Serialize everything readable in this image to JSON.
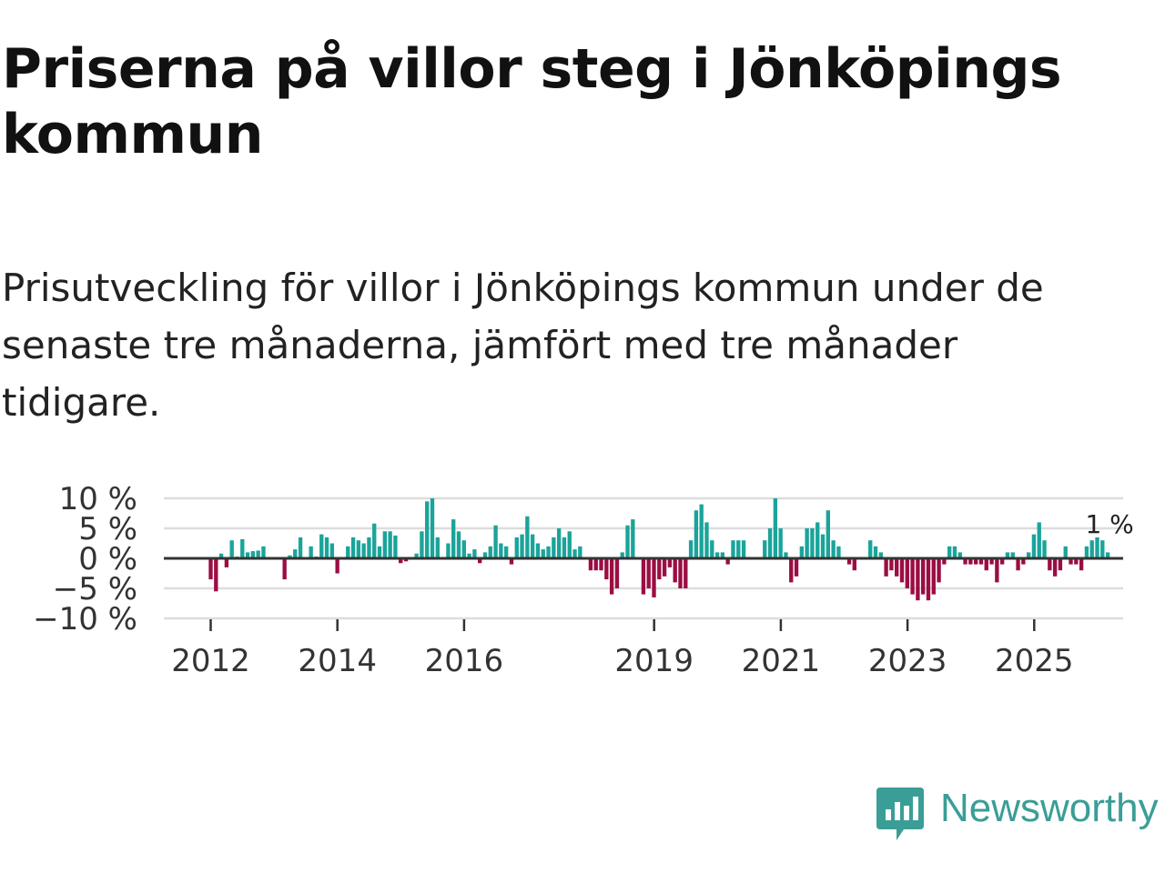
{
  "title": "Priserna på villor steg i Jönköpings kommun",
  "subtitle": "Prisutveckling för villor i Jönköpings kommun under de senaste tre månaderna, jämfört med tre månader tidigare.",
  "brand": {
    "name": "Newsworthy",
    "icon": "newsworthy-logo-icon",
    "color": "#3a9e97"
  },
  "colors": {
    "positive": "#1aa49a",
    "negative": "#9b0d43",
    "grid": "#dddddd",
    "zero": "#333333"
  },
  "chart_data": {
    "type": "bar",
    "title": "Priserna på villor steg i Jönköpings kommun",
    "xlabel": "",
    "ylabel": "",
    "ylim": [
      -10,
      10
    ],
    "yticks": [
      10,
      5,
      0,
      -5,
      -10
    ],
    "ytick_labels": [
      "10 %",
      "5 %",
      "0 %",
      "−5 %",
      "−10 %"
    ],
    "xticks": [
      2012,
      2014,
      2016,
      2019,
      2021,
      2023,
      2025
    ],
    "xtick_labels": [
      "2012",
      "2014",
      "2016",
      "2019",
      "2021",
      "2023",
      "2025"
    ],
    "x_start": 2012.0,
    "x_step_years": 0.0833,
    "unit": "%",
    "last_value_label": "1 %",
    "values": [
      -3.5,
      -5.5,
      0.8,
      -1.5,
      3.0,
      0.3,
      3.2,
      1.0,
      1.2,
      1.3,
      2.0,
      0.0,
      0.0,
      0.0,
      -3.5,
      0.5,
      1.5,
      3.5,
      0.0,
      2.0,
      0.3,
      4.0,
      3.5,
      2.5,
      -2.5,
      0.0,
      2.0,
      3.5,
      3.0,
      2.5,
      3.5,
      5.8,
      2.0,
      4.5,
      4.5,
      3.8,
      -0.8,
      -0.5,
      0.0,
      0.8,
      4.5,
      9.5,
      10.0,
      3.5,
      0.0,
      2.5,
      6.5,
      4.5,
      3.0,
      0.8,
      1.5,
      -0.8,
      1.0,
      2.0,
      5.5,
      2.5,
      2.0,
      -1.0,
      3.5,
      4.0,
      7.0,
      4.0,
      2.5,
      1.5,
      2.0,
      3.5,
      5.0,
      3.5,
      4.5,
      1.5,
      2.0,
      0.0,
      -2.0,
      -2.0,
      -2.0,
      -3.5,
      -6.0,
      -5.0,
      1.0,
      5.5,
      6.5,
      0.0,
      -6.0,
      -5.0,
      -6.5,
      -3.5,
      -3.0,
      -1.5,
      -4.0,
      -5.0,
      -5.0,
      3.0,
      8.0,
      9.0,
      6.0,
      3.0,
      1.0,
      1.0,
      -1.0,
      3.0,
      3.0,
      3.0,
      0.0,
      0.0,
      0.0,
      3.0,
      5.0,
      10.0,
      5.0,
      1.0,
      -4.0,
      -3.0,
      2.0,
      5.0,
      5.0,
      6.0,
      4.0,
      8.0,
      3.0,
      2.0,
      0.0,
      -1.0,
      -2.0,
      0.0,
      0.0,
      3.0,
      2.0,
      1.0,
      -3.0,
      -2.0,
      -3.0,
      -4.0,
      -5.0,
      -6.0,
      -7.0,
      -6.0,
      -7.0,
      -6.0,
      -4.0,
      -1.0,
      2.0,
      2.0,
      1.0,
      -1.0,
      -1.0,
      -1.0,
      -1.0,
      -2.0,
      -1.0,
      -4.0,
      -1.0,
      1.0,
      1.0,
      -2.0,
      -1.0,
      1.0,
      4.0,
      6.0,
      3.0,
      -2.0,
      -3.0,
      -2.0,
      2.0,
      -1.0,
      -1.0,
      -2.0,
      2.0,
      3.0,
      3.5,
      3.0,
      1.0
    ]
  }
}
